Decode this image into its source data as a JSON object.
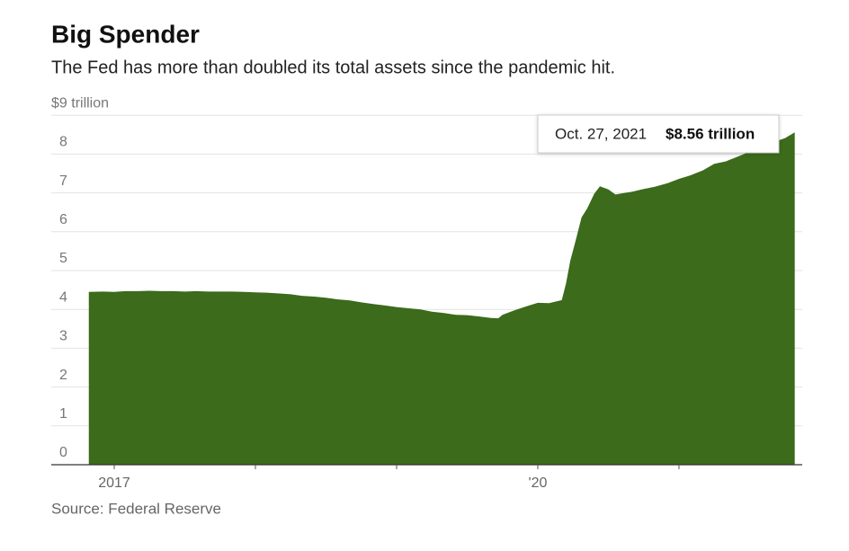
{
  "chart_data": {
    "type": "area",
    "title": "Big Spender",
    "subtitle": "The Fed has more than doubled its total assets since the pandemic hit.",
    "source": "Source: Federal Reserve",
    "color": "#3b6b1b",
    "grid": true,
    "xlim": [
      2016.554,
      2021.873
    ],
    "xticks": [
      2017,
      {
        "value": 2020,
        "label": "'20"
      }
    ],
    "xminor_ticks": [
      2018,
      2019,
      2021
    ],
    "ylim": [
      0,
      9
    ],
    "yticks": [
      0,
      1,
      2,
      3,
      4,
      5,
      6,
      7,
      8,
      {
        "value": 9,
        "label": "$9 trillion"
      }
    ],
    "annotation": {
      "date": "Oct. 27, 2021",
      "value": 8.56,
      "value_label": "$8.56 trillion"
    },
    "x": [
      2016.82,
      2016.92,
      2017.0,
      2017.08,
      2017.17,
      2017.25,
      2017.33,
      2017.42,
      2017.5,
      2017.58,
      2017.67,
      2017.75,
      2017.83,
      2017.92,
      2018.0,
      2018.08,
      2018.17,
      2018.25,
      2018.33,
      2018.42,
      2018.5,
      2018.58,
      2018.67,
      2018.75,
      2018.83,
      2018.92,
      2019.0,
      2019.08,
      2019.17,
      2019.25,
      2019.33,
      2019.42,
      2019.5,
      2019.58,
      2019.67,
      2019.72,
      2019.75,
      2019.83,
      2019.92,
      2020.0,
      2020.08,
      2020.17,
      2020.2,
      2020.23,
      2020.27,
      2020.31,
      2020.35,
      2020.4,
      2020.44,
      2020.5,
      2020.55,
      2020.6,
      2020.67,
      2020.75,
      2020.83,
      2020.92,
      2021.0,
      2021.08,
      2021.17,
      2021.25,
      2021.33,
      2021.42,
      2021.5,
      2021.58,
      2021.67,
      2021.75,
      2021.82
    ],
    "values": [
      4.45,
      4.46,
      4.45,
      4.47,
      4.47,
      4.48,
      4.47,
      4.47,
      4.46,
      4.47,
      4.46,
      4.46,
      4.46,
      4.45,
      4.44,
      4.43,
      4.41,
      4.39,
      4.35,
      4.33,
      4.3,
      4.26,
      4.23,
      4.18,
      4.14,
      4.1,
      4.06,
      4.03,
      4.0,
      3.94,
      3.91,
      3.86,
      3.85,
      3.82,
      3.78,
      3.77,
      3.86,
      3.97,
      4.08,
      4.17,
      4.16,
      4.24,
      4.67,
      5.25,
      5.8,
      6.37,
      6.6,
      6.98,
      7.17,
      7.09,
      6.96,
      6.99,
      7.03,
      7.1,
      7.16,
      7.25,
      7.36,
      7.45,
      7.58,
      7.75,
      7.81,
      7.94,
      8.06,
      8.17,
      8.31,
      8.41,
      8.56
    ]
  }
}
